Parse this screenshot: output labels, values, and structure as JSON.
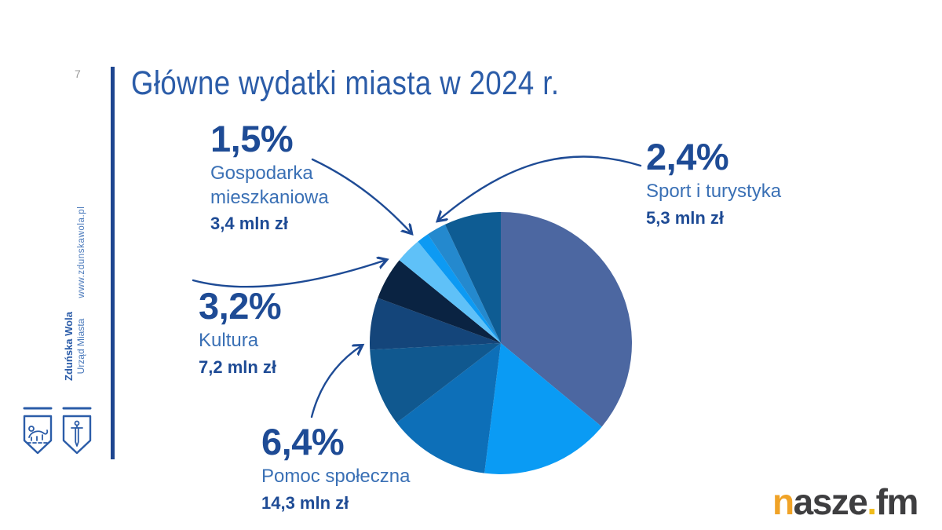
{
  "slide": {
    "page_number": "7",
    "title": "Główne wydatki miasta w 2024 r."
  },
  "sidebar": {
    "website": "www.zdunskawola.pl",
    "org_name": "Zduńska Wola",
    "org_sub": "Urząd Miasta"
  },
  "callouts": [
    {
      "percent": "1,5%",
      "name": "Gospodarka\nmieszkaniowa",
      "amount": "3,4 mln zł"
    },
    {
      "percent": "2,4%",
      "name": "Sport i turystyka",
      "amount": "5,3 mln zł"
    },
    {
      "percent": "3,2%",
      "name": "Kultura",
      "amount": "7,2 mln zł"
    },
    {
      "percent": "6,4%",
      "name": "Pomoc społeczna",
      "amount": "14,3 mln zł"
    }
  ],
  "logo": {
    "n": "n",
    "middle": "asze",
    "dot": ".",
    "suffix": "fm"
  },
  "colors": {
    "accent_line": "#1e4690",
    "title_blue": "#2b5ca8",
    "value_blue": "#1e4b95",
    "category_blue": "#3a70b5",
    "arrow_blue": "#1e4b95",
    "logo_orange": "#f0a327",
    "logo_yellow": "#f0bc1c",
    "logo_dark": "#3e3e40"
  },
  "chart_data": {
    "type": "pie",
    "title": "Główne wydatki miasta w 2024 r.",
    "start_angle_deg": 0,
    "direction": "clockwise",
    "legend_position": "none",
    "segments": [
      {
        "label": null,
        "percent": 36.0,
        "color": "#4c67a1"
      },
      {
        "label": null,
        "percent": 16.0,
        "color": "#0a9bf4"
      },
      {
        "label": null,
        "percent": 12.6,
        "color": "#0d6fb8"
      },
      {
        "label": null,
        "percent": 9.6,
        "color": "#10588f"
      },
      {
        "label": "Pomoc społeczna",
        "percent": 6.4,
        "amount": "14,3 mln zł",
        "color": "#14457a"
      },
      {
        "label": null,
        "percent": 5.3,
        "color": "#0a2342"
      },
      {
        "label": "Kultura",
        "percent": 3.2,
        "amount": "7,2 mln zł",
        "color": "#5fc1f8"
      },
      {
        "label": "Gospodarka mieszkaniowa",
        "percent": 1.5,
        "amount": "3,4 mln zł",
        "color": "#0d9af3"
      },
      {
        "label": "Sport i turystyka",
        "percent": 2.4,
        "amount": "5,3 mln zł",
        "color": "#2489ce"
      },
      {
        "label": null,
        "percent": 7.0,
        "color": "#0e5c93"
      }
    ]
  }
}
